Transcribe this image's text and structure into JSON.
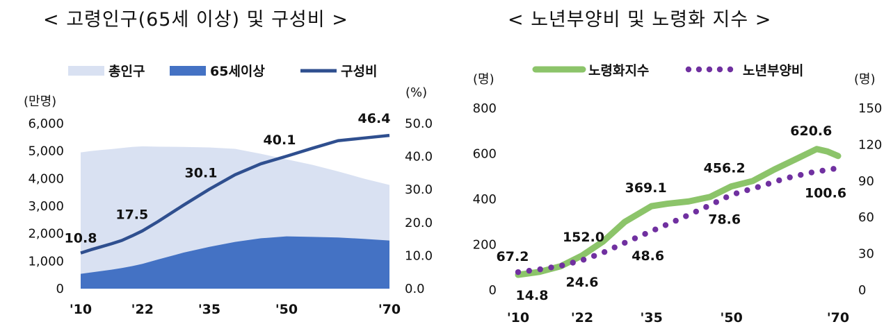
{
  "chart_data": [
    {
      "type": "area",
      "title": "< 고령인구(65세 이상) 및 구성비 >",
      "y_left_unit": "(만명)",
      "y_right_unit": "(%)",
      "y_left_ticks": [
        "0",
        "1,000",
        "2,000",
        "3,000",
        "4,000",
        "5,000",
        "6,000"
      ],
      "y_right_ticks": [
        "0.0",
        "10.0",
        "20.0",
        "30.0",
        "40.0",
        "50.0"
      ],
      "ylim_left": [
        0,
        6000
      ],
      "ylim_right": [
        0,
        50
      ],
      "x_ticks": [
        {
          "label": "'10",
          "year": 2010
        },
        {
          "label": "'22",
          "year": 2022
        },
        {
          "label": "'35",
          "year": 2035
        },
        {
          "label": "'50",
          "year": 2050
        },
        {
          "label": "'70",
          "year": 2070
        }
      ],
      "legend_position": "top",
      "series": [
        {
          "name": "총인구",
          "kind": "area",
          "color": "#d9e1f2",
          "axis": "left",
          "x": [
            2010,
            2012,
            2014,
            2016,
            2018,
            2020,
            2022,
            2025,
            2030,
            2035,
            2040,
            2045,
            2050,
            2055,
            2060,
            2065,
            2070
          ],
          "y": [
            4950,
            5000,
            5040,
            5070,
            5110,
            5150,
            5170,
            5160,
            5150,
            5130,
            5080,
            4900,
            4700,
            4500,
            4260,
            4000,
            3770
          ]
        },
        {
          "name": "65세이상",
          "kind": "area",
          "color": "#4472c4",
          "axis": "left",
          "x": [
            2010,
            2012,
            2014,
            2016,
            2018,
            2020,
            2022,
            2025,
            2030,
            2035,
            2040,
            2045,
            2050,
            2055,
            2060,
            2065,
            2070
          ],
          "y": [
            540,
            590,
            640,
            690,
            750,
            820,
            900,
            1060,
            1310,
            1520,
            1700,
            1830,
            1900,
            1880,
            1860,
            1810,
            1750
          ]
        },
        {
          "name": "구성비",
          "kind": "line",
          "color": "#2f4f8f",
          "axis": "right",
          "x": [
            2010,
            2012,
            2014,
            2016,
            2018,
            2020,
            2022,
            2025,
            2030,
            2035,
            2040,
            2045,
            2050,
            2055,
            2060,
            2065,
            2070
          ],
          "y": [
            10.8,
            11.8,
            12.7,
            13.6,
            14.6,
            16.0,
            17.5,
            20.3,
            25.3,
            30.1,
            34.5,
            37.8,
            40.1,
            42.5,
            44.8,
            45.6,
            46.4
          ]
        }
      ],
      "annotations": [
        {
          "text": "10.8",
          "x": 2010,
          "series": "구성비"
        },
        {
          "text": "17.5",
          "x": 2022,
          "series": "구성비"
        },
        {
          "text": "30.1",
          "x": 2035,
          "series": "구성비"
        },
        {
          "text": "40.1",
          "x": 2050,
          "series": "구성비"
        },
        {
          "text": "46.4",
          "x": 2070,
          "series": "구성비"
        }
      ]
    },
    {
      "type": "line",
      "title": "< 노년부양비 및 노령화 지수 >",
      "y_left_unit": "(명)",
      "y_right_unit": "(명)",
      "y_left_ticks": [
        "0",
        "200",
        "400",
        "600",
        "800"
      ],
      "y_right_ticks": [
        "0",
        "30",
        "60",
        "90",
        "120",
        "150"
      ],
      "ylim_left": [
        0,
        800
      ],
      "ylim_right": [
        0,
        150
      ],
      "x_ticks": [
        {
          "label": "'10",
          "year": 2010
        },
        {
          "label": "'22",
          "year": 2022
        },
        {
          "label": "'35",
          "year": 2035
        },
        {
          "label": "'50",
          "year": 2050
        },
        {
          "label": "'70",
          "year": 2070
        }
      ],
      "legend_position": "top",
      "series": [
        {
          "name": "노령화지수",
          "kind": "line",
          "color": "#8cc46a",
          "axis": "left",
          "x": [
            2010,
            2014,
            2018,
            2022,
            2026,
            2030,
            2035,
            2038,
            2042,
            2046,
            2050,
            2054,
            2058,
            2062,
            2066,
            2068,
            2070
          ],
          "y": [
            67.2,
            80,
            105,
            152,
            215,
            300,
            369.1,
            380,
            390,
            410,
            456.2,
            480,
            530,
            575,
            620.6,
            610,
            590
          ]
        },
        {
          "name": "노년부양비",
          "kind": "dotted",
          "color": "#7030a0",
          "axis": "right",
          "x": [
            2010,
            2014,
            2018,
            2022,
            2026,
            2030,
            2035,
            2040,
            2045,
            2050,
            2055,
            2060,
            2065,
            2070
          ],
          "y": [
            14.8,
            17,
            20,
            24.6,
            31,
            39,
            48.6,
            58,
            68,
            78.6,
            85,
            92,
            97,
            100.6
          ]
        }
      ],
      "annotations": [
        {
          "text": "67.2",
          "x": 2010,
          "series": "노령화지수"
        },
        {
          "text": "152.0",
          "x": 2022,
          "series": "노령화지수"
        },
        {
          "text": "369.1",
          "x": 2035,
          "series": "노령화지수"
        },
        {
          "text": "456.2",
          "x": 2050,
          "series": "노령화지수"
        },
        {
          "text": "620.6",
          "x": 2066,
          "series": "노령화지수"
        },
        {
          "text": "14.8",
          "x": 2010,
          "series": "노년부양비"
        },
        {
          "text": "24.6",
          "x": 2022,
          "series": "노년부양비"
        },
        {
          "text": "48.6",
          "x": 2035,
          "series": "노년부양비"
        },
        {
          "text": "78.6",
          "x": 2050,
          "series": "노년부양비"
        },
        {
          "text": "100.6",
          "x": 2070,
          "series": "노년부양비"
        }
      ]
    }
  ]
}
